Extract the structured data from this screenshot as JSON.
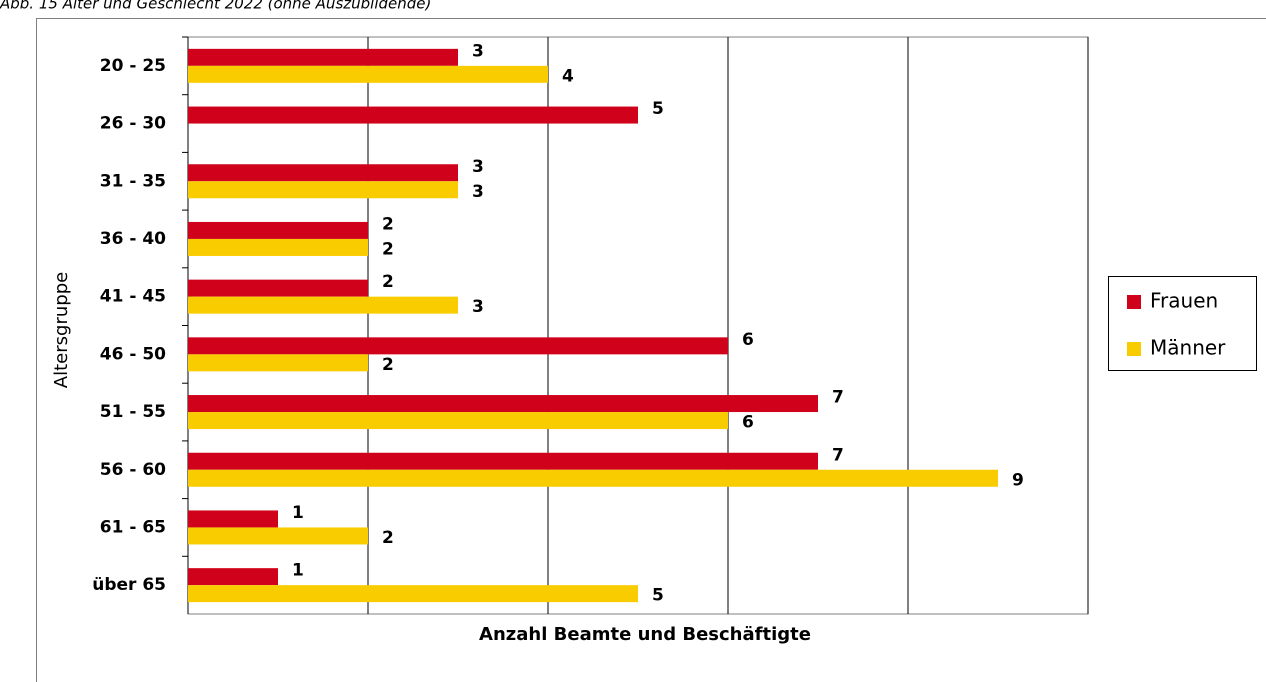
{
  "chart_data": {
    "type": "barh",
    "title": "Abb. 15 Alter und Geschlecht 2022 (ohne Auszubildende)",
    "ylabel": "Altersgruppe",
    "xlabel": "Anzahl Beamte und Beschäftigte",
    "categories": [
      "20 - 25",
      "26 - 30",
      "31 - 35",
      "36 - 40",
      "41 - 45",
      "46 - 50",
      "51 - 55",
      "56 - 60",
      "61 - 65",
      "über 65"
    ],
    "series": [
      {
        "name": "Frauen",
        "color": "#d0021b",
        "values": [
          3,
          5,
          3,
          2,
          2,
          6,
          7,
          7,
          1,
          1
        ]
      },
      {
        "name": "Männer",
        "color": "#f9cc00",
        "values": [
          4,
          null,
          3,
          2,
          3,
          2,
          6,
          9,
          2,
          5
        ]
      }
    ],
    "xlim": [
      0,
      10
    ],
    "xticks": [
      0,
      2,
      4,
      6,
      8,
      10
    ],
    "grid": true
  }
}
